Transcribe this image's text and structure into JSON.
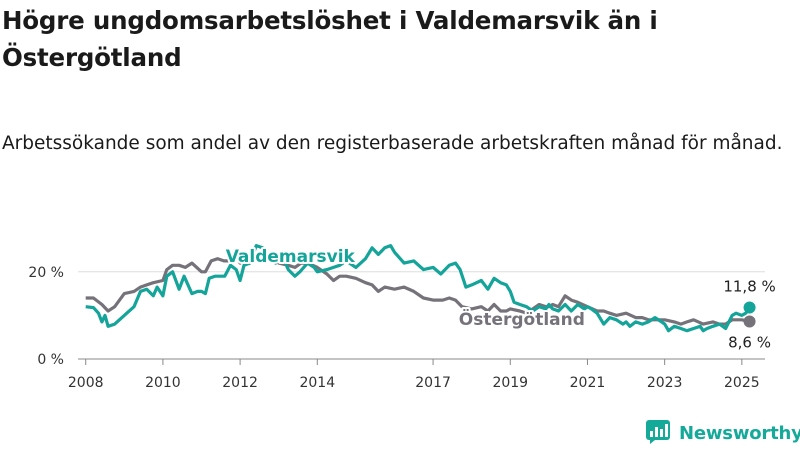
{
  "title": "Högre ungdomsarbetslöshet i Valdemarsvik än i Östergötland",
  "subtitle": "Arbetssökande som andel av den registerbaserade arbetskraften månad för månad.",
  "brand": {
    "name": "Newsworthy",
    "logo_icon": "newsworthy-chart-logo-icon",
    "color": "#15a99a"
  },
  "chart_data": {
    "type": "line",
    "ylim": [
      0,
      25
    ],
    "xlim": [
      2007.8,
      2025.6
    ],
    "grid": true,
    "y_ticks": [
      {
        "value": 0,
        "label": "0 %"
      },
      {
        "value": 20,
        "label": "20 %"
      }
    ],
    "x_ticks": [
      {
        "value": 2008,
        "label": "2008"
      },
      {
        "value": 2010,
        "label": "2010"
      },
      {
        "value": 2012,
        "label": "2012"
      },
      {
        "value": 2014,
        "label": "2014"
      },
      {
        "value": 2017,
        "label": "2017"
      },
      {
        "value": 2019,
        "label": "2019"
      },
      {
        "value": 2021,
        "label": "2021"
      },
      {
        "value": 2023,
        "label": "2023"
      },
      {
        "value": 2025,
        "label": "2025"
      }
    ],
    "series": [
      {
        "name": "Valdemarsvik",
        "color": "#14a49a",
        "end_label": "11,8 %",
        "end_value": 11.8,
        "points": [
          [
            2008.0,
            12.0
          ],
          [
            2008.2,
            11.8
          ],
          [
            2008.33,
            10.5
          ],
          [
            2008.42,
            8.5
          ],
          [
            2008.5,
            10.0
          ],
          [
            2008.58,
            7.5
          ],
          [
            2008.75,
            8.0
          ],
          [
            2009.0,
            10.0
          ],
          [
            2009.25,
            12.0
          ],
          [
            2009.42,
            15.5
          ],
          [
            2009.58,
            16.0
          ],
          [
            2009.75,
            14.5
          ],
          [
            2009.85,
            16.5
          ],
          [
            2010.0,
            14.5
          ],
          [
            2010.1,
            19.0
          ],
          [
            2010.25,
            20.0
          ],
          [
            2010.42,
            16.0
          ],
          [
            2010.55,
            19.0
          ],
          [
            2010.75,
            15.0
          ],
          [
            2010.9,
            15.5
          ],
          [
            2011.0,
            15.5
          ],
          [
            2011.1,
            15.0
          ],
          [
            2011.2,
            18.5
          ],
          [
            2011.35,
            19.0
          ],
          [
            2011.6,
            19.0
          ],
          [
            2011.75,
            21.5
          ],
          [
            2011.9,
            20.5
          ],
          [
            2012.0,
            18.0
          ],
          [
            2012.1,
            21.5
          ],
          [
            2012.25,
            22.0
          ],
          [
            2012.42,
            26.0
          ],
          [
            2012.58,
            25.5
          ],
          [
            2012.75,
            23.5
          ],
          [
            2012.92,
            22.0
          ],
          [
            2013.0,
            24.0
          ],
          [
            2013.1,
            23.5
          ],
          [
            2013.25,
            20.5
          ],
          [
            2013.42,
            19.0
          ],
          [
            2013.55,
            20.0
          ],
          [
            2013.75,
            22.0
          ],
          [
            2013.92,
            21.0
          ],
          [
            2014.0,
            20.0
          ],
          [
            2014.25,
            20.5
          ],
          [
            2014.42,
            21.0
          ],
          [
            2014.58,
            21.5
          ],
          [
            2014.75,
            22.5
          ],
          [
            2015.0,
            21.0
          ],
          [
            2015.25,
            23.0
          ],
          [
            2015.42,
            25.5
          ],
          [
            2015.58,
            24.0
          ],
          [
            2015.75,
            25.5
          ],
          [
            2015.9,
            26.0
          ],
          [
            2016.0,
            24.5
          ],
          [
            2016.25,
            22.0
          ],
          [
            2016.5,
            22.5
          ],
          [
            2016.75,
            20.5
          ],
          [
            2017.0,
            21.0
          ],
          [
            2017.2,
            19.5
          ],
          [
            2017.42,
            21.5
          ],
          [
            2017.58,
            22.0
          ],
          [
            2017.7,
            20.5
          ],
          [
            2017.85,
            16.5
          ],
          [
            2018.0,
            17.0
          ],
          [
            2018.25,
            18.0
          ],
          [
            2018.42,
            16.0
          ],
          [
            2018.58,
            18.5
          ],
          [
            2018.75,
            17.5
          ],
          [
            2018.9,
            17.0
          ],
          [
            2019.0,
            15.5
          ],
          [
            2019.1,
            13.0
          ],
          [
            2019.25,
            12.5
          ],
          [
            2019.42,
            12.0
          ],
          [
            2019.58,
            11.0
          ],
          [
            2019.75,
            12.0
          ],
          [
            2019.92,
            11.5
          ],
          [
            2020.0,
            12.5
          ],
          [
            2020.1,
            11.5
          ],
          [
            2020.25,
            11.0
          ],
          [
            2020.42,
            12.5
          ],
          [
            2020.58,
            11.0
          ],
          [
            2020.75,
            12.5
          ],
          [
            2020.92,
            11.5
          ],
          [
            2021.0,
            12.0
          ],
          [
            2021.1,
            11.5
          ],
          [
            2021.25,
            10.5
          ],
          [
            2021.42,
            8.0
          ],
          [
            2021.58,
            9.5
          ],
          [
            2021.75,
            9.0
          ],
          [
            2021.92,
            8.0
          ],
          [
            2022.0,
            8.5
          ],
          [
            2022.1,
            7.5
          ],
          [
            2022.25,
            8.5
          ],
          [
            2022.42,
            8.0
          ],
          [
            2022.58,
            8.5
          ],
          [
            2022.75,
            9.5
          ],
          [
            2022.92,
            8.5
          ],
          [
            2023.0,
            8.0
          ],
          [
            2023.1,
            6.5
          ],
          [
            2023.25,
            7.5
          ],
          [
            2023.42,
            7.0
          ],
          [
            2023.58,
            6.5
          ],
          [
            2023.75,
            7.0
          ],
          [
            2023.92,
            7.5
          ],
          [
            2024.0,
            6.5
          ],
          [
            2024.1,
            7.0
          ],
          [
            2024.25,
            7.5
          ],
          [
            2024.42,
            8.0
          ],
          [
            2024.58,
            7.0
          ],
          [
            2024.75,
            10.0
          ],
          [
            2024.85,
            10.5
          ],
          [
            2025.0,
            10.0
          ],
          [
            2025.1,
            10.5
          ],
          [
            2025.2,
            11.8
          ]
        ]
      },
      {
        "name": "Östergötland",
        "color": "#76727a",
        "end_label": "8,6 %",
        "end_value": 8.6,
        "points": [
          [
            2008.0,
            14.0
          ],
          [
            2008.2,
            14.0
          ],
          [
            2008.42,
            12.5
          ],
          [
            2008.58,
            11.0
          ],
          [
            2008.75,
            12.0
          ],
          [
            2009.0,
            15.0
          ],
          [
            2009.25,
            15.5
          ],
          [
            2009.42,
            16.5
          ],
          [
            2009.58,
            17.0
          ],
          [
            2009.75,
            17.5
          ],
          [
            2010.0,
            18.0
          ],
          [
            2010.1,
            20.5
          ],
          [
            2010.25,
            21.5
          ],
          [
            2010.42,
            21.5
          ],
          [
            2010.58,
            21.0
          ],
          [
            2010.75,
            22.0
          ],
          [
            2011.0,
            20.0
          ],
          [
            2011.1,
            20.0
          ],
          [
            2011.25,
            22.5
          ],
          [
            2011.42,
            23.0
          ],
          [
            2011.58,
            22.5
          ],
          [
            2011.75,
            22.5
          ],
          [
            2011.9,
            23.5
          ],
          [
            2012.0,
            22.0
          ],
          [
            2012.1,
            22.5
          ],
          [
            2012.25,
            22.0
          ],
          [
            2012.42,
            24.0
          ],
          [
            2012.58,
            24.5
          ],
          [
            2012.75,
            23.5
          ],
          [
            2012.92,
            22.5
          ],
          [
            2013.0,
            22.0
          ],
          [
            2013.25,
            21.5
          ],
          [
            2013.42,
            21.0
          ],
          [
            2013.58,
            22.0
          ],
          [
            2013.75,
            22.0
          ],
          [
            2014.0,
            21.0
          ],
          [
            2014.25,
            19.5
          ],
          [
            2014.42,
            18.0
          ],
          [
            2014.58,
            19.0
          ],
          [
            2014.75,
            19.0
          ],
          [
            2015.0,
            18.5
          ],
          [
            2015.25,
            17.5
          ],
          [
            2015.42,
            17.0
          ],
          [
            2015.58,
            15.5
          ],
          [
            2015.75,
            16.5
          ],
          [
            2016.0,
            16.0
          ],
          [
            2016.25,
            16.5
          ],
          [
            2016.5,
            15.5
          ],
          [
            2016.75,
            14.0
          ],
          [
            2017.0,
            13.5
          ],
          [
            2017.25,
            13.5
          ],
          [
            2017.42,
            14.0
          ],
          [
            2017.58,
            13.5
          ],
          [
            2017.75,
            12.0
          ],
          [
            2018.0,
            11.5
          ],
          [
            2018.25,
            12.0
          ],
          [
            2018.42,
            11.0
          ],
          [
            2018.58,
            12.5
          ],
          [
            2018.75,
            11.0
          ],
          [
            2018.9,
            11.0
          ],
          [
            2019.0,
            11.5
          ],
          [
            2019.25,
            11.0
          ],
          [
            2019.42,
            10.5
          ],
          [
            2019.58,
            11.5
          ],
          [
            2019.75,
            12.5
          ],
          [
            2019.92,
            12.0
          ],
          [
            2020.0,
            12.0
          ],
          [
            2020.1,
            12.5
          ],
          [
            2020.25,
            12.0
          ],
          [
            2020.42,
            14.5
          ],
          [
            2020.58,
            13.5
          ],
          [
            2020.75,
            13.0
          ],
          [
            2021.0,
            12.0
          ],
          [
            2021.25,
            11.0
          ],
          [
            2021.42,
            11.0
          ],
          [
            2021.58,
            10.5
          ],
          [
            2021.75,
            10.0
          ],
          [
            2022.0,
            10.5
          ],
          [
            2022.25,
            9.5
          ],
          [
            2022.42,
            9.5
          ],
          [
            2022.58,
            9.0
          ],
          [
            2022.75,
            9.0
          ],
          [
            2023.0,
            9.0
          ],
          [
            2023.25,
            8.5
          ],
          [
            2023.42,
            8.0
          ],
          [
            2023.58,
            8.5
          ],
          [
            2023.75,
            9.0
          ],
          [
            2024.0,
            8.0
          ],
          [
            2024.25,
            8.5
          ],
          [
            2024.42,
            8.0
          ],
          [
            2024.58,
            8.0
          ],
          [
            2024.75,
            9.0
          ],
          [
            2025.0,
            9.0
          ],
          [
            2025.2,
            8.6
          ]
        ]
      }
    ]
  }
}
